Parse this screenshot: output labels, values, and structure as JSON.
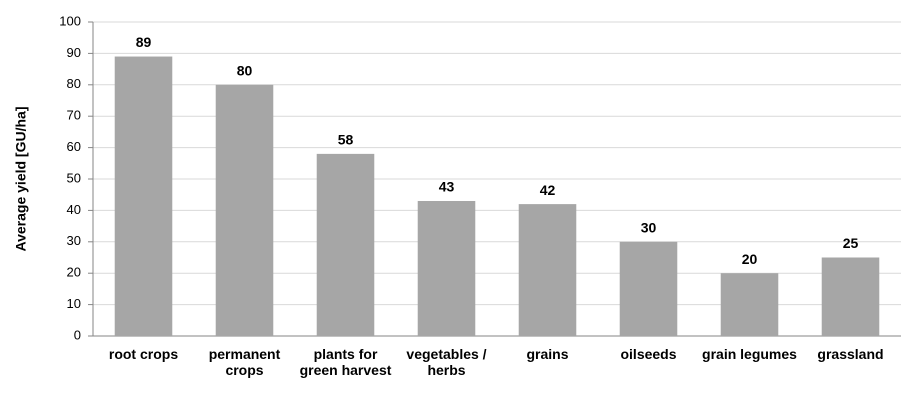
{
  "chart_data": {
    "type": "bar",
    "ylabel": "Average yield [GU/ha]",
    "categories": [
      "root crops",
      "permanent crops",
      "plants for green harvest",
      "vegetables / herbs",
      "grains",
      "oilseeds",
      "grain legumes",
      "grassland"
    ],
    "values": [
      89,
      80,
      58,
      43,
      42,
      30,
      20,
      25
    ],
    "color": "#a6a6a6",
    "ylim": [
      0,
      100
    ],
    "yticks": [
      0,
      10,
      20,
      30,
      40,
      50,
      60,
      70,
      80,
      90,
      100
    ],
    "grid": true
  }
}
